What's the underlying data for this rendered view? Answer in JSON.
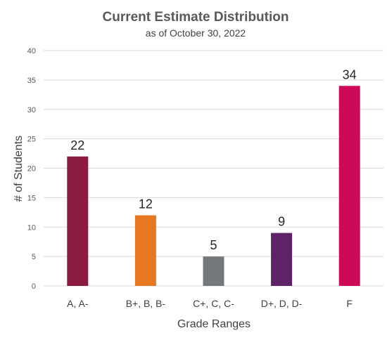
{
  "chart_data": {
    "type": "bar",
    "title": "Current Estimate Distribution",
    "subtitle": "as of October 30, 2022",
    "xlabel": "Grade Ranges",
    "ylabel": "# of Students",
    "ylim": [
      0,
      40
    ],
    "yticks": [
      0,
      5,
      10,
      15,
      20,
      25,
      30,
      35,
      40
    ],
    "categories": [
      "A, A-",
      "B+, B, B-",
      "C+, C, C-",
      "D+, D, D-",
      "F"
    ],
    "values": [
      22,
      12,
      5,
      9,
      34
    ],
    "value_labels": [
      "22",
      "12",
      "5",
      "9",
      "34"
    ],
    "colors": [
      "#8b1c40",
      "#e87722",
      "#75787b",
      "#5e2266",
      "#cc0a58"
    ],
    "grid": true,
    "legend": "none"
  }
}
